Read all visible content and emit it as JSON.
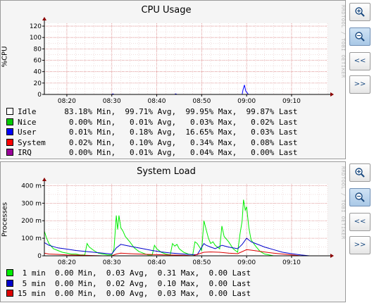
{
  "watermark": "RRDTOOL / TOBI OETIKER",
  "buttons": {
    "zoom_in_icon": "magnifier-plus-icon",
    "zoom_out_icon": "magnifier-minus-icon",
    "back_label": "<<",
    "forward_label": ">>"
  },
  "chart_data": [
    {
      "type": "line",
      "title": "CPU Usage",
      "ylabel": "%CPU",
      "xlabel": "",
      "ylim": [
        0,
        125
      ],
      "xlim": [
        "08:15",
        "09:18"
      ],
      "x_ticks": [
        "08:20",
        "08:30",
        "08:40",
        "08:50",
        "09:00",
        "09:10"
      ],
      "y_ticks": [
        "0",
        "20",
        "40",
        "60",
        "80",
        "100",
        "120"
      ],
      "y_tick_values": [
        0,
        20,
        40,
        60,
        80,
        100,
        120
      ],
      "grid": true,
      "series": [
        {
          "name": "User",
          "color": "#0000ff",
          "points": [
            [
              "08:15",
              0
            ],
            [
              "08:30",
              0
            ],
            [
              "08:30.2",
              1
            ],
            [
              "08:30.5",
              0
            ],
            [
              "08:44",
              0
            ],
            [
              "08:44.2",
              1
            ],
            [
              "08:44.5",
              0
            ],
            [
              "08:59",
              0
            ],
            [
              "08:59.2",
              8
            ],
            [
              "08:59.5",
              16.6
            ],
            [
              "08:59.8",
              6
            ],
            [
              "09:00.1",
              3
            ],
            [
              "09:00.4",
              0
            ],
            [
              "09:18",
              0
            ]
          ]
        }
      ],
      "legend": [
        {
          "name": "Idle",
          "color": "#ffffff",
          "min": "83.18%",
          "avg": "99.71%",
          "max": "99.95%",
          "last": "99.87%"
        },
        {
          "name": "Nice",
          "color": "#00cc00",
          "min": "0.00%",
          "avg": "0.01%",
          "max": "0.03%",
          "last": "0.02%"
        },
        {
          "name": "User",
          "color": "#0000ff",
          "min": "0.01%",
          "avg": "0.18%",
          "max": "16.65%",
          "last": "0.03%"
        },
        {
          "name": "System",
          "color": "#ff0000",
          "min": "0.02%",
          "avg": "0.10%",
          "max": "0.34%",
          "last": "0.08%"
        },
        {
          "name": "IRQ",
          "color": "#990099",
          "min": "0.00%",
          "avg": "0.01%",
          "max": "0.04%",
          "last": "0.00%"
        }
      ]
    },
    {
      "type": "line",
      "title": "System Load",
      "ylabel": "Processes",
      "xlabel": "",
      "ylim": [
        0,
        410
      ],
      "xlim": [
        "08:15",
        "09:18"
      ],
      "x_ticks": [
        "08:20",
        "08:30",
        "08:40",
        "08:50",
        "09:00",
        "09:10"
      ],
      "y_ticks": [
        "0",
        "100 m",
        "200 m",
        "300 m",
        "400 m"
      ],
      "y_tick_values": [
        0,
        100,
        200,
        300,
        400
      ],
      "y_unit": "m",
      "grid": true,
      "series": [
        {
          "name": "1 min",
          "color": "#00ee00",
          "points": [
            [
              "08:15",
              140
            ],
            [
              "08:15.5",
              100
            ],
            [
              "08:16",
              70
            ],
            [
              "08:17",
              40
            ],
            [
              "08:18",
              30
            ],
            [
              "08:19",
              20
            ],
            [
              "08:20",
              15
            ],
            [
              "08:21",
              10
            ],
            [
              "08:22",
              10
            ],
            [
              "08:23",
              5
            ],
            [
              "08:24",
              5
            ],
            [
              "08:24.5",
              70
            ],
            [
              "08:25",
              50
            ],
            [
              "08:26",
              30
            ],
            [
              "08:27",
              15
            ],
            [
              "08:28",
              10
            ],
            [
              "08:29",
              5
            ],
            [
              "08:30",
              5
            ],
            [
              "08:30.5",
              40
            ],
            [
              "08:31",
              230
            ],
            [
              "08:31.3",
              150
            ],
            [
              "08:31.6",
              230
            ],
            [
              "08:32",
              160
            ],
            [
              "08:32.5",
              140
            ],
            [
              "08:33",
              110
            ],
            [
              "08:34",
              80
            ],
            [
              "08:35",
              45
            ],
            [
              "08:36",
              25
            ],
            [
              "08:37",
              15
            ],
            [
              "08:38",
              5
            ],
            [
              "08:39",
              5
            ],
            [
              "08:39.5",
              60
            ],
            [
              "08:40",
              40
            ],
            [
              "08:41",
              20
            ],
            [
              "08:42",
              10
            ],
            [
              "08:43",
              5
            ],
            [
              "08:43.5",
              70
            ],
            [
              "08:44",
              55
            ],
            [
              "08:44.5",
              65
            ],
            [
              "08:45",
              40
            ],
            [
              "08:46",
              20
            ],
            [
              "08:47",
              10
            ],
            [
              "08:48",
              5
            ],
            [
              "08:48.5",
              80
            ],
            [
              "08:49",
              70
            ],
            [
              "08:50",
              30
            ],
            [
              "08:50.5",
              200
            ],
            [
              "08:51",
              150
            ],
            [
              "08:51.5",
              100
            ],
            [
              "08:52",
              70
            ],
            [
              "08:52.5",
              80
            ],
            [
              "08:53",
              60
            ],
            [
              "08:54",
              40
            ],
            [
              "08:54.5",
              170
            ],
            [
              "08:55",
              110
            ],
            [
              "08:56",
              80
            ],
            [
              "08:57",
              40
            ],
            [
              "08:58",
              20
            ],
            [
              "08:58.5",
              120
            ],
            [
              "08:59",
              200
            ],
            [
              "08:59.3",
              320
            ],
            [
              "08:59.7",
              260
            ],
            [
              "09:00",
              280
            ],
            [
              "09:00.5",
              160
            ],
            [
              "09:01",
              90
            ],
            [
              "09:02",
              55
            ],
            [
              "09:03",
              25
            ],
            [
              "09:04",
              10
            ],
            [
              "09:05",
              5
            ],
            [
              "09:06",
              0
            ],
            [
              "09:18",
              0
            ]
          ]
        },
        {
          "name": "5 min",
          "color": "#0000cc",
          "points": [
            [
              "08:15",
              75
            ],
            [
              "08:16",
              60
            ],
            [
              "08:18",
              45
            ],
            [
              "08:20",
              38
            ],
            [
              "08:22",
              30
            ],
            [
              "08:24",
              25
            ],
            [
              "08:26",
              20
            ],
            [
              "08:28",
              15
            ],
            [
              "08:30",
              10
            ],
            [
              "08:31",
              45
            ],
            [
              "08:32",
              65
            ],
            [
              "08:33",
              60
            ],
            [
              "08:35",
              50
            ],
            [
              "08:37",
              40
            ],
            [
              "08:39",
              30
            ],
            [
              "08:41",
              22
            ],
            [
              "08:43",
              16
            ],
            [
              "08:45",
              12
            ],
            [
              "08:47",
              8
            ],
            [
              "08:49",
              6
            ],
            [
              "08:50.5",
              70
            ],
            [
              "08:51",
              60
            ],
            [
              "08:52",
              50
            ],
            [
              "08:53",
              40
            ],
            [
              "08:54.5",
              60
            ],
            [
              "08:56",
              50
            ],
            [
              "08:58",
              40
            ],
            [
              "08:59",
              65
            ],
            [
              "09:00",
              100
            ],
            [
              "09:01",
              80
            ],
            [
              "09:02",
              70
            ],
            [
              "09:04",
              50
            ],
            [
              "09:06",
              35
            ],
            [
              "09:08",
              20
            ],
            [
              "09:10",
              12
            ],
            [
              "09:12",
              5
            ],
            [
              "09:14",
              0
            ],
            [
              "09:18",
              0
            ]
          ]
        },
        {
          "name": "15 min",
          "color": "#dd0000",
          "points": [
            [
              "08:15",
              15
            ],
            [
              "08:16",
              10
            ],
            [
              "08:18",
              8
            ],
            [
              "08:20",
              5
            ],
            [
              "08:24",
              3
            ],
            [
              "08:28",
              0
            ],
            [
              "08:30",
              0
            ],
            [
              "08:31",
              10
            ],
            [
              "08:32",
              15
            ],
            [
              "08:34",
              12
            ],
            [
              "08:38",
              8
            ],
            [
              "08:42",
              5
            ],
            [
              "08:46",
              3
            ],
            [
              "08:48",
              0
            ],
            [
              "08:50.5",
              20
            ],
            [
              "08:52",
              22
            ],
            [
              "08:54",
              20
            ],
            [
              "08:56",
              15
            ],
            [
              "08:58",
              12
            ],
            [
              "09:00",
              35
            ],
            [
              "09:01",
              32
            ],
            [
              "09:03",
              25
            ],
            [
              "09:06",
              15
            ],
            [
              "09:10",
              5
            ],
            [
              "09:12",
              0
            ],
            [
              "09:18",
              0
            ]
          ]
        }
      ],
      "legend": [
        {
          "name": "1 min",
          "color": "#00ee00",
          "min": "0.00",
          "avg": "0.03",
          "max": "0.31",
          "last": "0.00"
        },
        {
          "name": "5 min",
          "color": "#0000cc",
          "min": "0.00",
          "avg": "0.02",
          "max": "0.10",
          "last": "0.00"
        },
        {
          "name": "15 min",
          "color": "#dd0000",
          "min": "0.00",
          "avg": "0.00",
          "max": "0.03",
          "last": "0.00"
        }
      ]
    }
  ]
}
